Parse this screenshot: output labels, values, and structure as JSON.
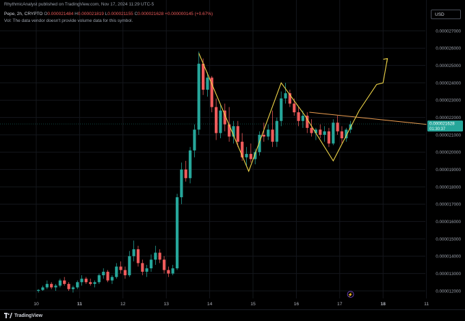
{
  "header": {
    "published": "RhythmicAnalyst published on TradingView.com, Nov 17, 2024 11:29 UTC-5"
  },
  "legend": {
    "symbol": "Pepe, 2h, CRYPTO",
    "open_label": "O",
    "open": "0.000021484",
    "high_label": "H",
    "high": "0.000021819",
    "low_label": "L",
    "low": "0.000021155",
    "close_label": "C",
    "close": "0.000021628",
    "change": "+0.000000145 (+0.67%)",
    "volume_note": "Vol: The data vendor doesn't provide volume data for this symbol."
  },
  "currency": "USD",
  "price_badge": {
    "price": "0.000021628",
    "countdown": "01:30:37",
    "color": "#26a69a"
  },
  "footer": {
    "brand": "TradingView"
  },
  "colors": {
    "up": "#26a69a",
    "down": "#ef5b5b",
    "pattern": "#f0d649",
    "trendline": "#f0a052",
    "grid": "#14171d"
  },
  "chart_data": {
    "type": "candlestick",
    "x_axis": {
      "labels": [
        "10",
        "11",
        "12",
        "13",
        "14",
        "15",
        "16",
        "17",
        "18",
        "11"
      ],
      "bold": [
        "11",
        "18"
      ]
    },
    "y_axis": {
      "labels": [
        "0.000027000",
        "0.000026000",
        "0.000025000",
        "0.000024000",
        "0.000023000",
        "0.000022000",
        "0.000021000",
        "0.000020000",
        "0.000019000",
        "0.000018000",
        "0.000017000",
        "0.000016000",
        "0.000015000",
        "0.000014000",
        "0.000013000",
        "0.000012000"
      ],
      "range": [
        1.16e-05,
        2.77e-05
      ]
    },
    "candles": [
      [
        10.05,
        12.0,
        12.1,
        11.9,
        12.05
      ],
      [
        10.15,
        12.05,
        12.3,
        12.0,
        12.2
      ],
      [
        10.25,
        12.2,
        12.6,
        12.1,
        12.4
      ],
      [
        10.35,
        12.4,
        12.5,
        12.1,
        12.2
      ],
      [
        10.45,
        12.2,
        12.4,
        12.0,
        12.3
      ],
      [
        10.55,
        12.3,
        12.7,
        12.2,
        12.6
      ],
      [
        10.65,
        12.6,
        12.8,
        12.3,
        12.4
      ],
      [
        10.75,
        12.4,
        12.5,
        12.0,
        12.1
      ],
      [
        10.85,
        12.1,
        12.3,
        11.9,
        12.2
      ],
      [
        10.95,
        12.2,
        12.6,
        12.1,
        12.5
      ],
      [
        11.05,
        12.5,
        12.9,
        12.3,
        12.7
      ],
      [
        11.15,
        12.7,
        12.8,
        12.4,
        12.5
      ],
      [
        11.25,
        12.5,
        12.7,
        12.3,
        12.4
      ],
      [
        11.35,
        12.4,
        12.6,
        12.2,
        12.5
      ],
      [
        11.45,
        12.5,
        13.0,
        12.4,
        12.9
      ],
      [
        11.55,
        12.9,
        13.3,
        12.7,
        13.1
      ],
      [
        11.65,
        13.1,
        13.2,
        12.5,
        12.6
      ],
      [
        11.75,
        12.6,
        12.9,
        12.4,
        12.8
      ],
      [
        11.85,
        12.8,
        13.6,
        12.7,
        13.4
      ],
      [
        11.95,
        13.4,
        13.7,
        13.0,
        13.2
      ],
      [
        12.05,
        13.2,
        13.4,
        12.7,
        12.9
      ],
      [
        12.15,
        12.9,
        14.3,
        12.8,
        14.0
      ],
      [
        12.25,
        14.0,
        14.9,
        13.7,
        14.4
      ],
      [
        12.35,
        14.4,
        14.6,
        13.4,
        13.6
      ],
      [
        12.45,
        13.6,
        13.8,
        12.9,
        13.1
      ],
      [
        12.55,
        13.1,
        13.5,
        12.8,
        13.3
      ],
      [
        12.65,
        13.3,
        14.1,
        13.1,
        13.8
      ],
      [
        12.75,
        13.8,
        14.6,
        13.5,
        14.2
      ],
      [
        12.85,
        14.2,
        14.4,
        13.6,
        13.8
      ],
      [
        12.95,
        13.8,
        14.0,
        13.0,
        13.2
      ],
      [
        13.05,
        13.2,
        13.4,
        12.8,
        13.0
      ],
      [
        13.15,
        13.0,
        13.5,
        12.9,
        13.3
      ],
      [
        13.25,
        13.3,
        17.6,
        13.2,
        17.4
      ],
      [
        13.35,
        17.4,
        19.4,
        17.0,
        19.0
      ],
      [
        13.45,
        19.0,
        19.5,
        18.3,
        18.5
      ],
      [
        13.55,
        18.5,
        20.3,
        18.2,
        20.1
      ],
      [
        13.65,
        20.1,
        21.6,
        19.7,
        21.3
      ],
      [
        13.75,
        21.3,
        25.8,
        21.0,
        25.1
      ],
      [
        13.85,
        25.1,
        25.4,
        23.3,
        23.6
      ],
      [
        13.95,
        23.6,
        24.6,
        23.2,
        24.3
      ],
      [
        14.05,
        24.3,
        24.4,
        22.3,
        22.6
      ],
      [
        14.15,
        22.6,
        23.1,
        20.7,
        21.1
      ],
      [
        14.25,
        21.1,
        22.7,
        20.8,
        22.4
      ],
      [
        14.35,
        22.4,
        22.8,
        21.2,
        21.6
      ],
      [
        14.45,
        21.6,
        22.6,
        20.6,
        20.9
      ],
      [
        14.55,
        20.9,
        21.8,
        20.5,
        21.5
      ],
      [
        14.65,
        21.5,
        21.8,
        20.3,
        20.6
      ],
      [
        14.75,
        20.6,
        21.1,
        19.5,
        19.7
      ],
      [
        14.85,
        19.7,
        20.3,
        19.2,
        19.9
      ],
      [
        14.95,
        19.9,
        20.5,
        19.4,
        19.6
      ],
      [
        15.05,
        19.6,
        20.2,
        19.3,
        20.0
      ],
      [
        15.15,
        20.0,
        21.2,
        19.8,
        21.0
      ],
      [
        15.25,
        21.0,
        21.7,
        20.6,
        20.9
      ],
      [
        15.35,
        20.9,
        21.6,
        20.7,
        21.3
      ],
      [
        15.45,
        21.3,
        22.4,
        20.3,
        20.6
      ],
      [
        15.55,
        20.6,
        22.0,
        20.3,
        21.8
      ],
      [
        15.65,
        21.8,
        23.5,
        21.5,
        23.1
      ],
      [
        15.75,
        23.1,
        24.0,
        22.8,
        23.4
      ],
      [
        15.85,
        23.4,
        23.6,
        22.6,
        22.8
      ],
      [
        15.95,
        22.8,
        23.1,
        22.1,
        22.3
      ],
      [
        16.05,
        22.3,
        22.6,
        21.5,
        21.8
      ],
      [
        16.15,
        21.8,
        22.4,
        21.4,
        22.1
      ],
      [
        16.25,
        22.1,
        22.3,
        21.1,
        21.4
      ],
      [
        16.35,
        21.4,
        21.9,
        20.9,
        21.1
      ],
      [
        16.45,
        21.1,
        21.4,
        20.7,
        21.3
      ],
      [
        16.55,
        21.3,
        21.6,
        20.8,
        21.0
      ],
      [
        16.65,
        21.0,
        21.5,
        20.6,
        21.2
      ],
      [
        16.75,
        21.2,
        21.4,
        20.3,
        20.5
      ],
      [
        16.85,
        20.5,
        21.9,
        20.4,
        21.7
      ],
      [
        16.95,
        21.7,
        22.1,
        21.0,
        21.2
      ],
      [
        17.05,
        21.2,
        21.5,
        20.5,
        20.8
      ],
      [
        17.15,
        20.8,
        21.4,
        20.6,
        21.3
      ],
      [
        17.25,
        21.3,
        21.8,
        21.1,
        21.6
      ]
    ],
    "pattern_line": [
      [
        13.75,
        25.7
      ],
      [
        14.9,
        18.9
      ],
      [
        15.65,
        24.0
      ],
      [
        16.2,
        22.1
      ],
      [
        16.85,
        19.5
      ],
      [
        17.45,
        22.4
      ],
      [
        17.85,
        23.9
      ],
      [
        18.0,
        24.0
      ],
      [
        18.1,
        25.4
      ]
    ],
    "neckline": [
      [
        16.3,
        22.3
      ],
      [
        19.0,
        21.6
      ]
    ],
    "event_marker": {
      "x": 17.25,
      "symbol": "⚡"
    }
  }
}
